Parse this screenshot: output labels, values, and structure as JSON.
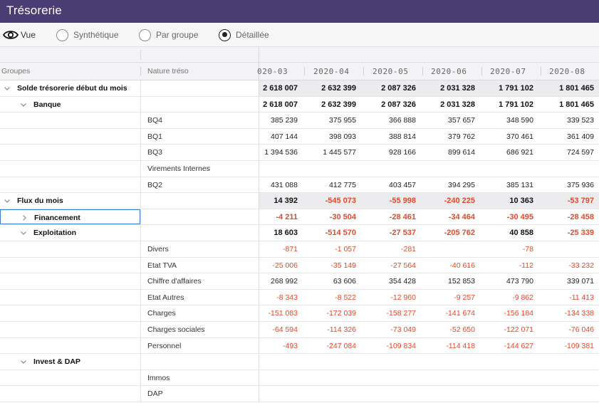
{
  "app": {
    "title": "Trésorerie"
  },
  "view": {
    "vue_label": "Vue",
    "options": [
      {
        "label": "Synthétique",
        "checked": false
      },
      {
        "label": "Par groupe",
        "checked": false
      },
      {
        "label": "Détaillée",
        "checked": true
      }
    ]
  },
  "columns": {
    "groupes": "Groupes",
    "nature": "Nature tréso",
    "dates": [
      "020-03",
      "2020-04",
      "2020-05",
      "2020-06",
      "2020-07",
      "2020-08"
    ]
  },
  "rows": [
    {
      "level": 0,
      "chevron": "down",
      "group": "Solde trésorerie début du mois",
      "nature": "",
      "bold": true,
      "shaded": true,
      "values": [
        "2 618 007",
        "2 632 399",
        "2 087 326",
        "2 031 328",
        "1 791 102",
        "1 801 465"
      ]
    },
    {
      "level": 1,
      "chevron": "down",
      "group": "Banque",
      "nature": "",
      "bold": true,
      "values": [
        "2 618 007",
        "2 632 399",
        "2 087 326",
        "2 031 328",
        "1 791 102",
        "1 801 465"
      ]
    },
    {
      "level": 2,
      "group": "",
      "nature": "BQ4",
      "values": [
        "385 239",
        "375 955",
        "366 888",
        "357 657",
        "348 590",
        "339 523"
      ]
    },
    {
      "level": 2,
      "group": "",
      "nature": "BQ1",
      "values": [
        "407 144",
        "398 093",
        "388 814",
        "379 762",
        "370 461",
        "361 409"
      ]
    },
    {
      "level": 2,
      "group": "",
      "nature": "BQ3",
      "values": [
        "1 394 536",
        "1 445 577",
        "928 166",
        "899 614",
        "686 921",
        "724 597"
      ]
    },
    {
      "level": 2,
      "group": "",
      "nature": "Virements Internes",
      "values": [
        "",
        "",
        "",
        "",
        "",
        ""
      ]
    },
    {
      "level": 2,
      "group": "",
      "nature": "BQ2",
      "values": [
        "431 088",
        "412 775",
        "403 457",
        "394 295",
        "385 131",
        "375 936"
      ]
    },
    {
      "level": 0,
      "chevron": "down",
      "group": "Flux du mois",
      "nature": "",
      "bold": true,
      "shaded": true,
      "values": [
        "14 392",
        "-545 073",
        "-55 998",
        "-240 225",
        "10 363",
        "-53 797"
      ]
    },
    {
      "level": 1,
      "chevron": "right",
      "group": "Financement",
      "nature": "",
      "bold": true,
      "focus": true,
      "values": [
        "-4 211",
        "-30 504",
        "-28 461",
        "-34 464",
        "-30 495",
        "-28 458"
      ]
    },
    {
      "level": 1,
      "chevron": "down",
      "group": "Exploitation",
      "nature": "",
      "bold": true,
      "values": [
        "18 603",
        "-514 570",
        "-27 537",
        "-205 762",
        "40 858",
        "-25 339"
      ]
    },
    {
      "level": 2,
      "group": "",
      "nature": "Divers",
      "values": [
        "-871",
        "-1 057",
        "-281",
        "",
        "-78",
        ""
      ]
    },
    {
      "level": 2,
      "group": "",
      "nature": "Etat TVA",
      "values": [
        "-25 006",
        "-35 149",
        "-27 564",
        "-40 616",
        "-112",
        "-33 232"
      ]
    },
    {
      "level": 2,
      "group": "",
      "nature": "Chiffre d'affaires",
      "values": [
        "268 992",
        "63 606",
        "354 428",
        "152 853",
        "473 790",
        "339 071"
      ]
    },
    {
      "level": 2,
      "group": "",
      "nature": "Etat Autres",
      "values": [
        "-8 343",
        "-8 522",
        "-12 960",
        "-9 257",
        "-9 862",
        "-11 413"
      ]
    },
    {
      "level": 2,
      "group": "",
      "nature": "Charges",
      "values": [
        "-151 083",
        "-172 039",
        "-158 277",
        "-141 674",
        "-156 184",
        "-134 338"
      ]
    },
    {
      "level": 2,
      "group": "",
      "nature": "Charges sociales",
      "values": [
        "-64 594",
        "-114 326",
        "-73 049",
        "-52 650",
        "-122 071",
        "-76 046"
      ]
    },
    {
      "level": 2,
      "group": "",
      "nature": "Personnel",
      "values": [
        "-493",
        "-247 084",
        "-109 834",
        "-114 418",
        "-144 627",
        "-109 381"
      ]
    },
    {
      "level": 1,
      "chevron": "down",
      "group": "Invest & DAP",
      "nature": "",
      "bold": true,
      "values": [
        "",
        "",
        "",
        "",
        "",
        ""
      ]
    },
    {
      "level": 2,
      "group": "",
      "nature": "Immos",
      "values": [
        "",
        "",
        "",
        "",
        "",
        ""
      ]
    },
    {
      "level": 2,
      "group": "",
      "nature": "DAP",
      "values": [
        "",
        "",
        "",
        "",
        "",
        ""
      ]
    }
  ],
  "colors": {
    "header_bg": "#4a3d73",
    "negative": "#e8472a",
    "focus": "#3a7bd5"
  }
}
